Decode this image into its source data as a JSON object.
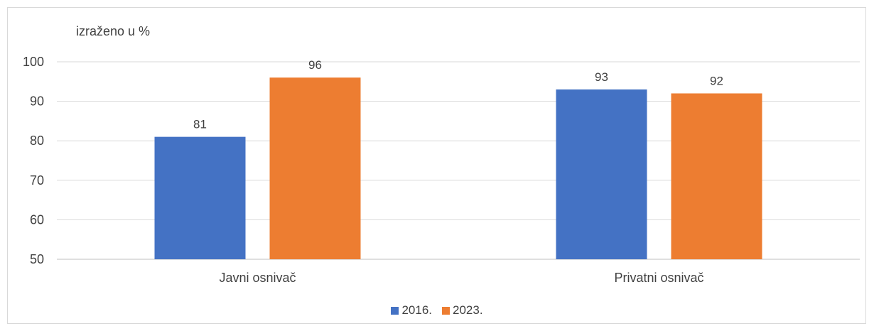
{
  "chart_data": {
    "type": "bar",
    "unit_note": "izraženo u %",
    "categories": [
      "Javni osnivač",
      "Privatni osnivač"
    ],
    "series": [
      {
        "name": "2016.",
        "values": [
          81,
          93
        ],
        "color": "#4472c4"
      },
      {
        "name": "2023.",
        "values": [
          96,
          92
        ],
        "color": "#ed7d31"
      }
    ],
    "ylim": [
      50,
      100
    ],
    "yticks": [
      50,
      60,
      70,
      80,
      90,
      100
    ],
    "grid": true,
    "legend_position": "bottom"
  }
}
